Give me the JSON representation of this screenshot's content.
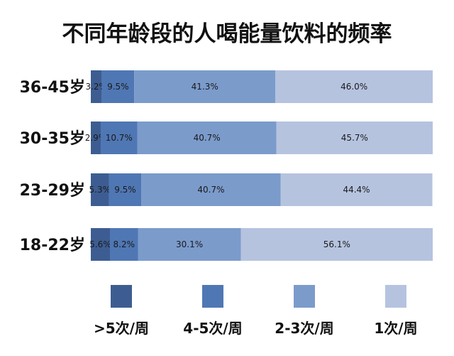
{
  "chart_data": {
    "type": "bar",
    "orientation": "horizontal",
    "stacked": true,
    "title": "不同年龄段的人喝能量饮料的频率",
    "xlabel": "",
    "ylabel": "",
    "xlim": [
      0,
      100
    ],
    "grid": false,
    "legend_position": "bottom",
    "categories": [
      "36-45岁",
      "30-35岁",
      "23-29岁",
      "18-22岁"
    ],
    "series": [
      {
        "name": ">5次/周",
        "color": "#3d5d92",
        "values": [
          3.2,
          2.9,
          5.3,
          5.6
        ],
        "labels": [
          "3.2%",
          "2.9%",
          "5.3%",
          "5.6%"
        ]
      },
      {
        "name": "4-5次/周",
        "color": "#4f77b4",
        "values": [
          9.5,
          10.7,
          9.5,
          8.2
        ],
        "labels": [
          "9.5%",
          "10.7%",
          "9.5%",
          "8.2%"
        ]
      },
      {
        "name": "2-3次/周",
        "color": "#7b9bcb",
        "values": [
          41.3,
          40.7,
          40.7,
          30.1
        ],
        "labels": [
          "41.3%",
          "40.7%",
          "40.7%",
          "30.1%"
        ]
      },
      {
        "name": "1次/周",
        "color": "#b6c3df",
        "values": [
          46.0,
          45.7,
          44.4,
          56.1
        ],
        "labels": [
          "46.0%",
          "45.7%",
          "44.4%",
          "56.1%"
        ]
      }
    ]
  }
}
